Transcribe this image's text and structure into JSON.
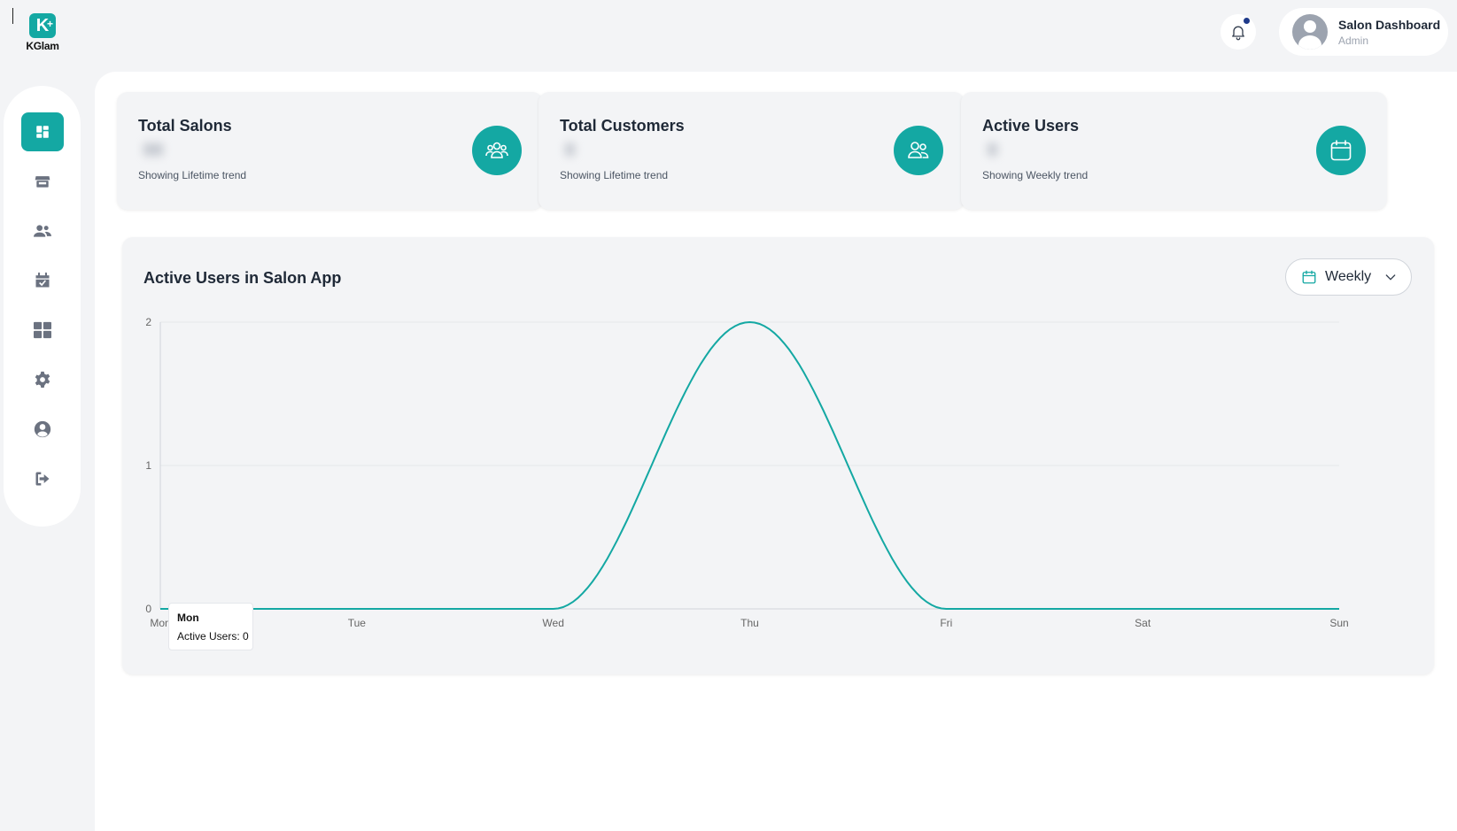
{
  "brand": {
    "name": "KGlam",
    "mark": "K"
  },
  "header": {
    "profile_name": "Salon Dashboard",
    "profile_role": "Admin"
  },
  "sidebar": {
    "items": [
      {
        "name": "dashboard",
        "icon": "dashboard-icon",
        "active": true
      },
      {
        "name": "salons",
        "icon": "store-icon",
        "active": false
      },
      {
        "name": "customers",
        "icon": "users-icon",
        "active": false
      },
      {
        "name": "bookings",
        "icon": "calendar-check-icon",
        "active": false
      },
      {
        "name": "categories",
        "icon": "grid-icon",
        "active": false
      },
      {
        "name": "settings",
        "icon": "gear-icon",
        "active": false
      },
      {
        "name": "profile",
        "icon": "user-circle-icon",
        "active": false
      },
      {
        "name": "logout",
        "icon": "logout-icon",
        "active": false
      }
    ]
  },
  "stats": [
    {
      "title": "Total Salons",
      "value": "00",
      "subtitle": "Showing Lifetime trend",
      "icon": "users-group-icon"
    },
    {
      "title": "Total Customers",
      "value": "0",
      "subtitle": "Showing Lifetime trend",
      "icon": "users-icon"
    },
    {
      "title": "Active Users",
      "value": "0",
      "subtitle": "Showing Weekly trend",
      "icon": "calendar-icon"
    }
  ],
  "chart_card": {
    "title": "Active Users in Salon App",
    "period": "Weekly"
  },
  "tooltip": {
    "title": "Mon",
    "line": "Active Users: 0"
  },
  "colors": {
    "accent": "#14a8a3",
    "background": "#f3f4f6",
    "notification_dot": "#1e3a8a"
  },
  "chart_data": {
    "type": "area",
    "categories": [
      "Mon",
      "Tue",
      "Wed",
      "Thu",
      "Fri",
      "Sat",
      "Sun"
    ],
    "series": [
      {
        "values": [
          0,
          0,
          0,
          2,
          0,
          0,
          0
        ]
      }
    ],
    "ylim": [
      0,
      2
    ],
    "yticks": [
      0,
      1,
      2
    ],
    "grid": true,
    "xlabel": "",
    "ylabel": ""
  }
}
